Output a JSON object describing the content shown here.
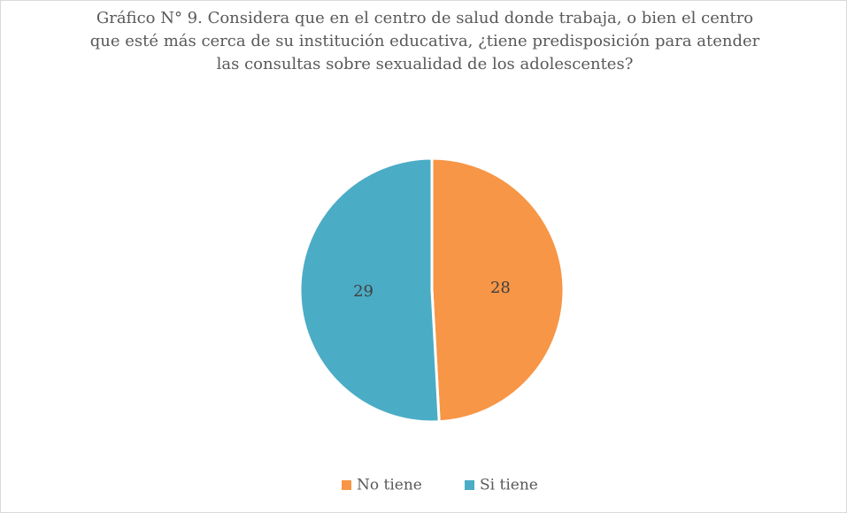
{
  "chart_data": {
    "type": "pie",
    "title": "Gráfico N° 9. Considera que en el centro de salud donde trabaja, o bien el centro que esté más cerca de su institución educativa, ¿tiene predisposición para atender las consultas sobre sexualidad de los adolescentes?",
    "categories": [
      "No tiene",
      "Si tiene"
    ],
    "values": [
      28,
      29
    ],
    "colors": [
      "#F79646",
      "#4BACC6"
    ],
    "legend": "bottom"
  }
}
